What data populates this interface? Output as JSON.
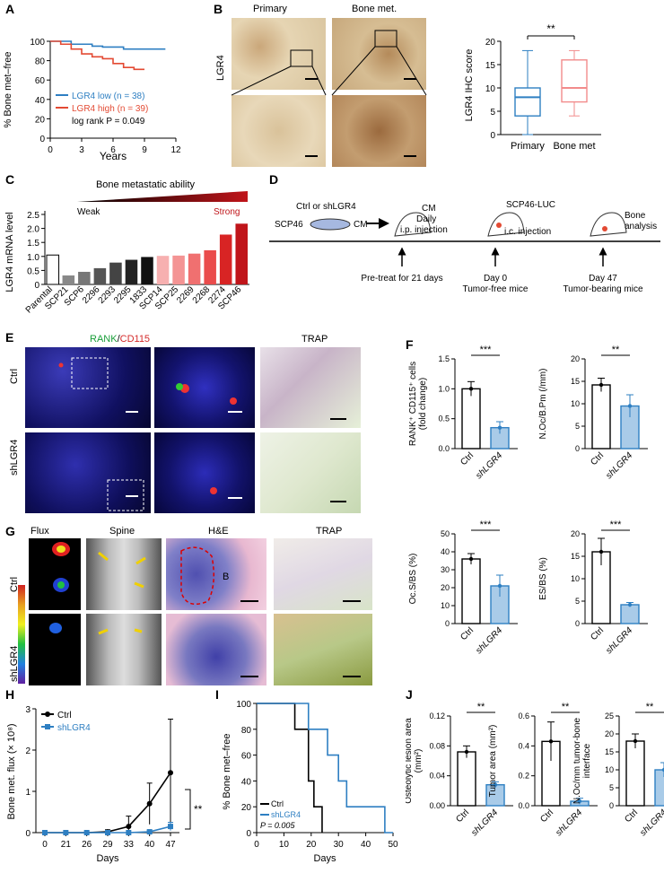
{
  "panels": {
    "A": {
      "letter": "A",
      "ylabel": "% Bone met–free",
      "xlabel": "Years",
      "xticks": [
        "0",
        "3",
        "6",
        "9",
        "12"
      ],
      "yticks": [
        "0",
        "20",
        "40",
        "60",
        "80",
        "100"
      ],
      "legend_low": "LGR4 low (n = 38)",
      "legend_high": "LGR4 high (n = 39)",
      "stat": "log rank P = 0.049",
      "colors": {
        "low": "#2e7fc2",
        "high": "#e34a33"
      }
    },
    "B": {
      "letter": "B",
      "col1": "Primary",
      "col2": "Bone met.",
      "rowlabel": "LGR4",
      "chart_ylabel": "LGR4 IHC score",
      "chart_yticks": [
        "0",
        "5",
        "10",
        "15",
        "20"
      ],
      "chart_xticks": [
        "Primary",
        "Bone met"
      ],
      "sig": "**"
    },
    "C": {
      "letter": "C",
      "title": "Bone metastatic ability",
      "weak": "Weak",
      "strong": "Strong",
      "ylabel": "LGR4 mRNA level",
      "yticks": [
        "0",
        "0.5",
        "1.0",
        "1.5",
        "2.0",
        "2.5"
      ]
    },
    "D": {
      "letter": "D",
      "t_ctrl": "Ctrl or shLGR4",
      "t_cm1": "CM",
      "t_scp46": "SCP46",
      "t_cm2": "CM",
      "t_daily": "Daily",
      "t_ip": "i.p. injection",
      "t_luc": "SCP46-LUC",
      "t_ic": "i.c. injection",
      "t_bone": "Bone",
      "t_analysis": "analysis",
      "t_pretreat": "Pre-treat for 21 days",
      "t_day0": "Day 0",
      "t_free": "Tumor-free mice",
      "t_day47": "Day 47",
      "t_bearing": "Tumor-bearing mice"
    },
    "E": {
      "letter": "E",
      "rank": "RANK",
      "slash": "/",
      "cd115": "CD115",
      "trap": "TRAP",
      "row1": "Ctrl",
      "row2": "shLGR4"
    },
    "F": {
      "letter": "F",
      "charts": [
        {
          "ylabel": "RANK⁺ CD115⁺ cells (fold change)",
          "yticks": [
            "0.0",
            "0.5",
            "1.0",
            "1.5"
          ],
          "sig": "***"
        },
        {
          "ylabel": "N.Oc/B.Pm (/mm)",
          "yticks": [
            "0",
            "5",
            "10",
            "15",
            "20"
          ],
          "sig": "**"
        },
        {
          "ylabel": "Oc.S/BS (%)",
          "yticks": [
            "0",
            "10",
            "20",
            "30",
            "40",
            "50"
          ],
          "sig": "***"
        },
        {
          "ylabel": "ES/BS (%)",
          "yticks": [
            "0",
            "5",
            "10",
            "15",
            "20"
          ],
          "sig": "***"
        }
      ],
      "xticks": [
        "Ctrl",
        "shLGR4"
      ]
    },
    "G": {
      "letter": "G",
      "flux": "Flux",
      "spine": "Spine",
      "he": "H&E",
      "trap": "TRAP",
      "row1": "Ctrl",
      "row2": "shLGR4",
      "b_label": "B"
    },
    "H": {
      "letter": "H",
      "ylabel": "Bone met. flux (× 10⁸)",
      "xlabel": "Days",
      "xticks": [
        "0",
        "21",
        "26",
        "29",
        "33",
        "40",
        "47"
      ],
      "yticks": [
        "0",
        "1",
        "2",
        "3"
      ],
      "legend_ctrl": "Ctrl",
      "legend_sh": "shLGR4",
      "sig": "**"
    },
    "I": {
      "letter": "I",
      "ylabel": "% Bone met–free",
      "xlabel": "Days",
      "xticks": [
        "0",
        "10",
        "20",
        "30",
        "40",
        "50"
      ],
      "yticks": [
        "0",
        "20",
        "40",
        "60",
        "80",
        "100"
      ],
      "legend_ctrl": "Ctrl",
      "legend_sh": "shLGR4",
      "stat": "P = 0.005"
    },
    "J": {
      "letter": "J",
      "charts": [
        {
          "ylabel": "Osteolytic lesion area (mm²)",
          "yticks": [
            "0.00",
            "0.04",
            "0.08",
            "0.12"
          ],
          "sig": "**"
        },
        {
          "ylabel": "Tumor area (mm²)",
          "yticks": [
            "0.0",
            "0.2",
            "0.4",
            "0.6"
          ],
          "sig": "**"
        },
        {
          "ylabel": "N.Oc/mm tumor-bone interface",
          "yticks": [
            "0",
            "5",
            "10",
            "15",
            "20",
            "25"
          ],
          "sig": "**"
        }
      ],
      "xticks": [
        "Ctrl",
        "shLGR4"
      ]
    }
  },
  "chart_data": [
    {
      "type": "line",
      "panel": "A",
      "xlim": [
        0,
        12
      ],
      "ylim": [
        0,
        100
      ],
      "series": [
        {
          "name": "LGR4 low (n = 38)",
          "x": [
            0,
            1,
            2,
            3,
            4,
            5,
            6,
            7,
            8,
            9,
            10,
            11
          ],
          "values": [
            100,
            100,
            97,
            97,
            95,
            94,
            94,
            92,
            92,
            92,
            92,
            92
          ]
        },
        {
          "name": "LGR4 high (n = 39)",
          "x": [
            0,
            1,
            2,
            3,
            4,
            5,
            6,
            7,
            8,
            9
          ],
          "values": [
            100,
            97,
            92,
            87,
            84,
            82,
            77,
            73,
            71,
            71
          ]
        }
      ]
    },
    {
      "type": "scatter",
      "panel": "B",
      "categories": [
        "Primary",
        "Bone met"
      ],
      "ylim": [
        0,
        20
      ],
      "medians": [
        8,
        10
      ],
      "q1": [
        4,
        7
      ],
      "q3": [
        10,
        16
      ],
      "whisker_min": [
        0,
        4
      ],
      "whisker_max": [
        18,
        18
      ]
    },
    {
      "type": "bar",
      "panel": "C",
      "categories": [
        "Parental",
        "SCP21",
        "SCP6",
        "2296",
        "2293",
        "2295",
        "1833",
        "SCP14",
        "SCP25",
        "2269",
        "2268",
        "2274",
        "SCP46"
      ],
      "values": [
        1.05,
        0.32,
        0.45,
        0.58,
        0.78,
        0.88,
        0.98,
        1.02,
        1.03,
        1.1,
        1.22,
        1.78,
        2.17
      ],
      "ylim": [
        0,
        2.5
      ]
    },
    {
      "type": "bar",
      "panel": "F",
      "charts": [
        {
          "categories": [
            "Ctrl",
            "shLGR4"
          ],
          "values": [
            1.0,
            0.35
          ],
          "errors": [
            0.12,
            0.1
          ],
          "ylim": [
            0,
            1.5
          ]
        },
        {
          "categories": [
            "Ctrl",
            "shLGR4"
          ],
          "values": [
            14.2,
            9.5
          ],
          "errors": [
            1.5,
            2.5
          ],
          "ylim": [
            0,
            20
          ]
        },
        {
          "categories": [
            "Ctrl",
            "shLGR4"
          ],
          "values": [
            36,
            21
          ],
          "errors": [
            3,
            6
          ],
          "ylim": [
            0,
            50
          ]
        },
        {
          "categories": [
            "Ctrl",
            "shLGR4"
          ],
          "values": [
            16,
            4.2
          ],
          "errors": [
            3,
            0.5
          ],
          "ylim": [
            0,
            20
          ]
        }
      ]
    },
    {
      "type": "line",
      "panel": "H",
      "x": [
        0,
        21,
        26,
        29,
        33,
        40,
        47
      ],
      "ylim": [
        0,
        3
      ],
      "series": [
        {
          "name": "Ctrl",
          "values": [
            0,
            0,
            0,
            0.02,
            0.15,
            0.7,
            1.45
          ],
          "errors": [
            0,
            0,
            0,
            0.05,
            0.25,
            0.5,
            1.3
          ]
        },
        {
          "name": "shLGR4",
          "values": [
            0,
            0,
            0,
            0,
            0,
            0.02,
            0.15
          ],
          "errors": [
            0,
            0,
            0,
            0,
            0,
            0.03,
            0.1
          ]
        }
      ]
    },
    {
      "type": "line",
      "panel": "I",
      "xlim": [
        0,
        50
      ],
      "ylim": [
        0,
        100
      ],
      "series": [
        {
          "name": "Ctrl",
          "x": [
            0,
            14,
            14,
            19,
            19,
            21,
            21,
            24,
            24
          ],
          "values": [
            100,
            100,
            80,
            80,
            40,
            40,
            20,
            20,
            0
          ]
        },
        {
          "name": "shLGR4",
          "x": [
            0,
            19,
            19,
            26,
            26,
            30,
            30,
            33,
            33,
            40,
            40,
            47,
            47,
            50
          ],
          "values": [
            100,
            100,
            80,
            80,
            60,
            60,
            40,
            40,
            20,
            20,
            20,
            20,
            0,
            0
          ]
        }
      ]
    },
    {
      "type": "bar",
      "panel": "J",
      "charts": [
        {
          "categories": [
            "Ctrl",
            "shLGR4"
          ],
          "values": [
            0.072,
            0.028
          ],
          "errors": [
            0.008,
            0.004
          ],
          "ylim": [
            0,
            0.12
          ]
        },
        {
          "categories": [
            "Ctrl",
            "shLGR4"
          ],
          "values": [
            0.43,
            0.03
          ],
          "errors": [
            0.13,
            0.02
          ],
          "ylim": [
            0,
            0.6
          ]
        },
        {
          "categories": [
            "Ctrl",
            "shLGR4"
          ],
          "values": [
            18,
            10
          ],
          "errors": [
            2,
            2
          ],
          "ylim": [
            0,
            25
          ]
        }
      ]
    }
  ]
}
